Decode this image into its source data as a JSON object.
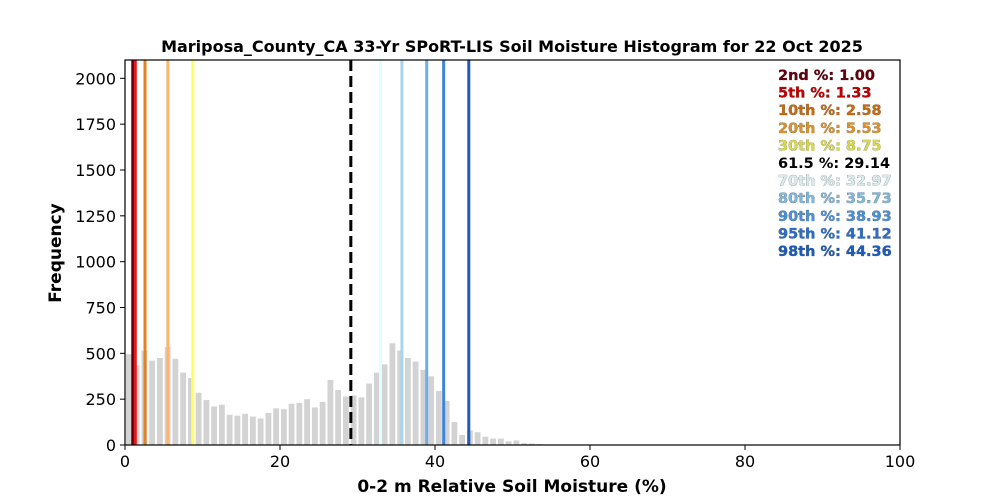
{
  "chart_data": {
    "type": "bar",
    "title": "Mariposa_County_CA 33-Yr SPoRT-LIS Soil Moisture Histogram for 22 Oct 2025",
    "xlabel": "0-2 m Relative Soil Moisture (%)",
    "ylabel": "Frequency",
    "xlim": [
      0,
      100
    ],
    "ylim": [
      0,
      2100
    ],
    "xticks": [
      0,
      20,
      40,
      60,
      80,
      100
    ],
    "yticks": [
      0,
      250,
      500,
      750,
      1000,
      1250,
      1500,
      1750,
      2000
    ],
    "grid": false,
    "bar_color": "#d3d3d3",
    "bins": {
      "x": [
        0.5,
        1.5,
        2.5,
        3.5,
        4.5,
        5.5,
        6.5,
        7.5,
        8.5,
        9.5,
        10.5,
        11.5,
        12.5,
        13.5,
        14.5,
        15.5,
        16.5,
        17.5,
        18.5,
        19.5,
        20.5,
        21.5,
        22.5,
        23.5,
        24.5,
        25.5,
        26.5,
        27.5,
        28.5,
        29.5,
        30.5,
        31.5,
        32.5,
        33.5,
        34.5,
        35.5,
        36.5,
        37.5,
        38.5,
        39.5,
        40.5,
        41.5,
        42.5,
        43.5,
        44.5,
        45.5,
        46.5,
        47.5,
        48.5,
        49.5,
        50.5,
        51.5,
        52.5,
        53.5
      ],
      "values": [
        495,
        435,
        515,
        460,
        475,
        535,
        470,
        395,
        365,
        285,
        245,
        210,
        220,
        165,
        160,
        170,
        155,
        145,
        175,
        200,
        195,
        225,
        230,
        250,
        205,
        235,
        355,
        300,
        265,
        270,
        260,
        335,
        395,
        440,
        555,
        515,
        475,
        455,
        410,
        375,
        295,
        240,
        125,
        55,
        80,
        70,
        45,
        35,
        35,
        20,
        25,
        10,
        8,
        5
      ]
    },
    "percentile_lines": [
      {
        "x": 1.0,
        "color": "#67000d",
        "style": "solid"
      },
      {
        "x": 1.33,
        "color": "#e31a1c",
        "style": "solid"
      },
      {
        "x": 2.58,
        "color": "#e6821e",
        "style": "solid"
      },
      {
        "x": 5.53,
        "color": "#fdb46e",
        "style": "solid"
      },
      {
        "x": 8.75,
        "color": "#ffff66",
        "style": "solid"
      },
      {
        "x": 29.14,
        "color": "#000000",
        "style": "dashed"
      },
      {
        "x": 32.97,
        "color": "#e0ffff",
        "style": "solid"
      },
      {
        "x": 35.73,
        "color": "#a8d4f0",
        "style": "solid"
      },
      {
        "x": 38.93,
        "color": "#6caeea",
        "style": "solid"
      },
      {
        "x": 41.12,
        "color": "#3d85d8",
        "style": "solid"
      },
      {
        "x": 44.36,
        "color": "#1c5cb8",
        "style": "solid"
      }
    ],
    "legend_text": [
      {
        "text": "2nd %: 1.00",
        "color": "#67000d"
      },
      {
        "text": "5th %: 1.33",
        "color": "#c00000"
      },
      {
        "text": "10th %: 2.58",
        "color": "#c66a12"
      },
      {
        "text": "20th %: 5.53",
        "color": "#d9932e"
      },
      {
        "text": "30th %: 8.75",
        "color": "#d8d84a"
      },
      {
        "text": "61.5 %: 29.14",
        "color": "#000000"
      },
      {
        "text": "70th %: 32.97",
        "color": "#d8eaea"
      },
      {
        "text": "80th %: 35.73",
        "color": "#7fb6d9"
      },
      {
        "text": "90th %: 38.93",
        "color": "#4b8fd6"
      },
      {
        "text": "95th %: 41.12",
        "color": "#2a6ec9"
      },
      {
        "text": "98th %: 44.36",
        "color": "#1c5cb8"
      }
    ],
    "legend_placement": "top-right"
  }
}
